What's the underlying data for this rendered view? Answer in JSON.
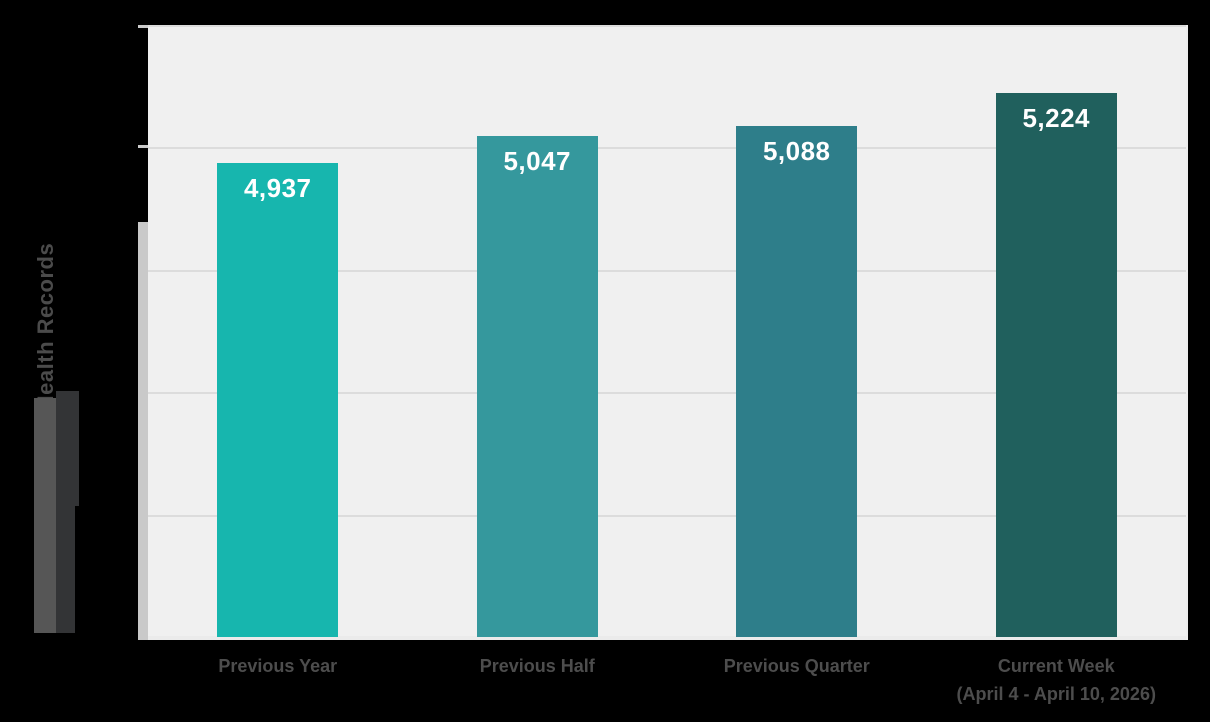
{
  "page": {
    "background": "#000000"
  },
  "colors": {
    "plot_bg": "#f0f0f0",
    "gridline": "#dcdcdc",
    "axis_line": "#d8d8d8",
    "axis_band": "#c9c9c9",
    "axis_tick": "#cbcbcb",
    "bottom_strip": "#ebebeb",
    "value_label_text": "#ffffff",
    "category_label_text": "#4d4d4d",
    "y_title_text": "#4b4b4b",
    "overlay_medium": "#565656",
    "overlay_dark": "#333436"
  },
  "chart_data": {
    "type": "bar",
    "title": "",
    "xlabel": "",
    "ylabel": "Health Records",
    "categories": [
      "Previous Year",
      "Previous Half",
      "Previous Quarter",
      "Current Week (April 4 - April 10, 2026)"
    ],
    "category_lines": [
      [
        "Previous Year"
      ],
      [
        "Previous Half"
      ],
      [
        "Previous Quarter"
      ],
      [
        "Current Week",
        "(April 4 - April 10, 2026)"
      ]
    ],
    "values": [
      4937,
      5047,
      5088,
      5224
    ],
    "display_values": [
      "4,937",
      "5,047",
      "5,088",
      "5,224"
    ],
    "bar_colors": [
      "#17b6ae",
      "#35989d",
      "#2e7e8a",
      "#20605d"
    ],
    "ylim": [
      3000,
      5500
    ],
    "grid_step": 500,
    "grid": true,
    "legend": false
  }
}
